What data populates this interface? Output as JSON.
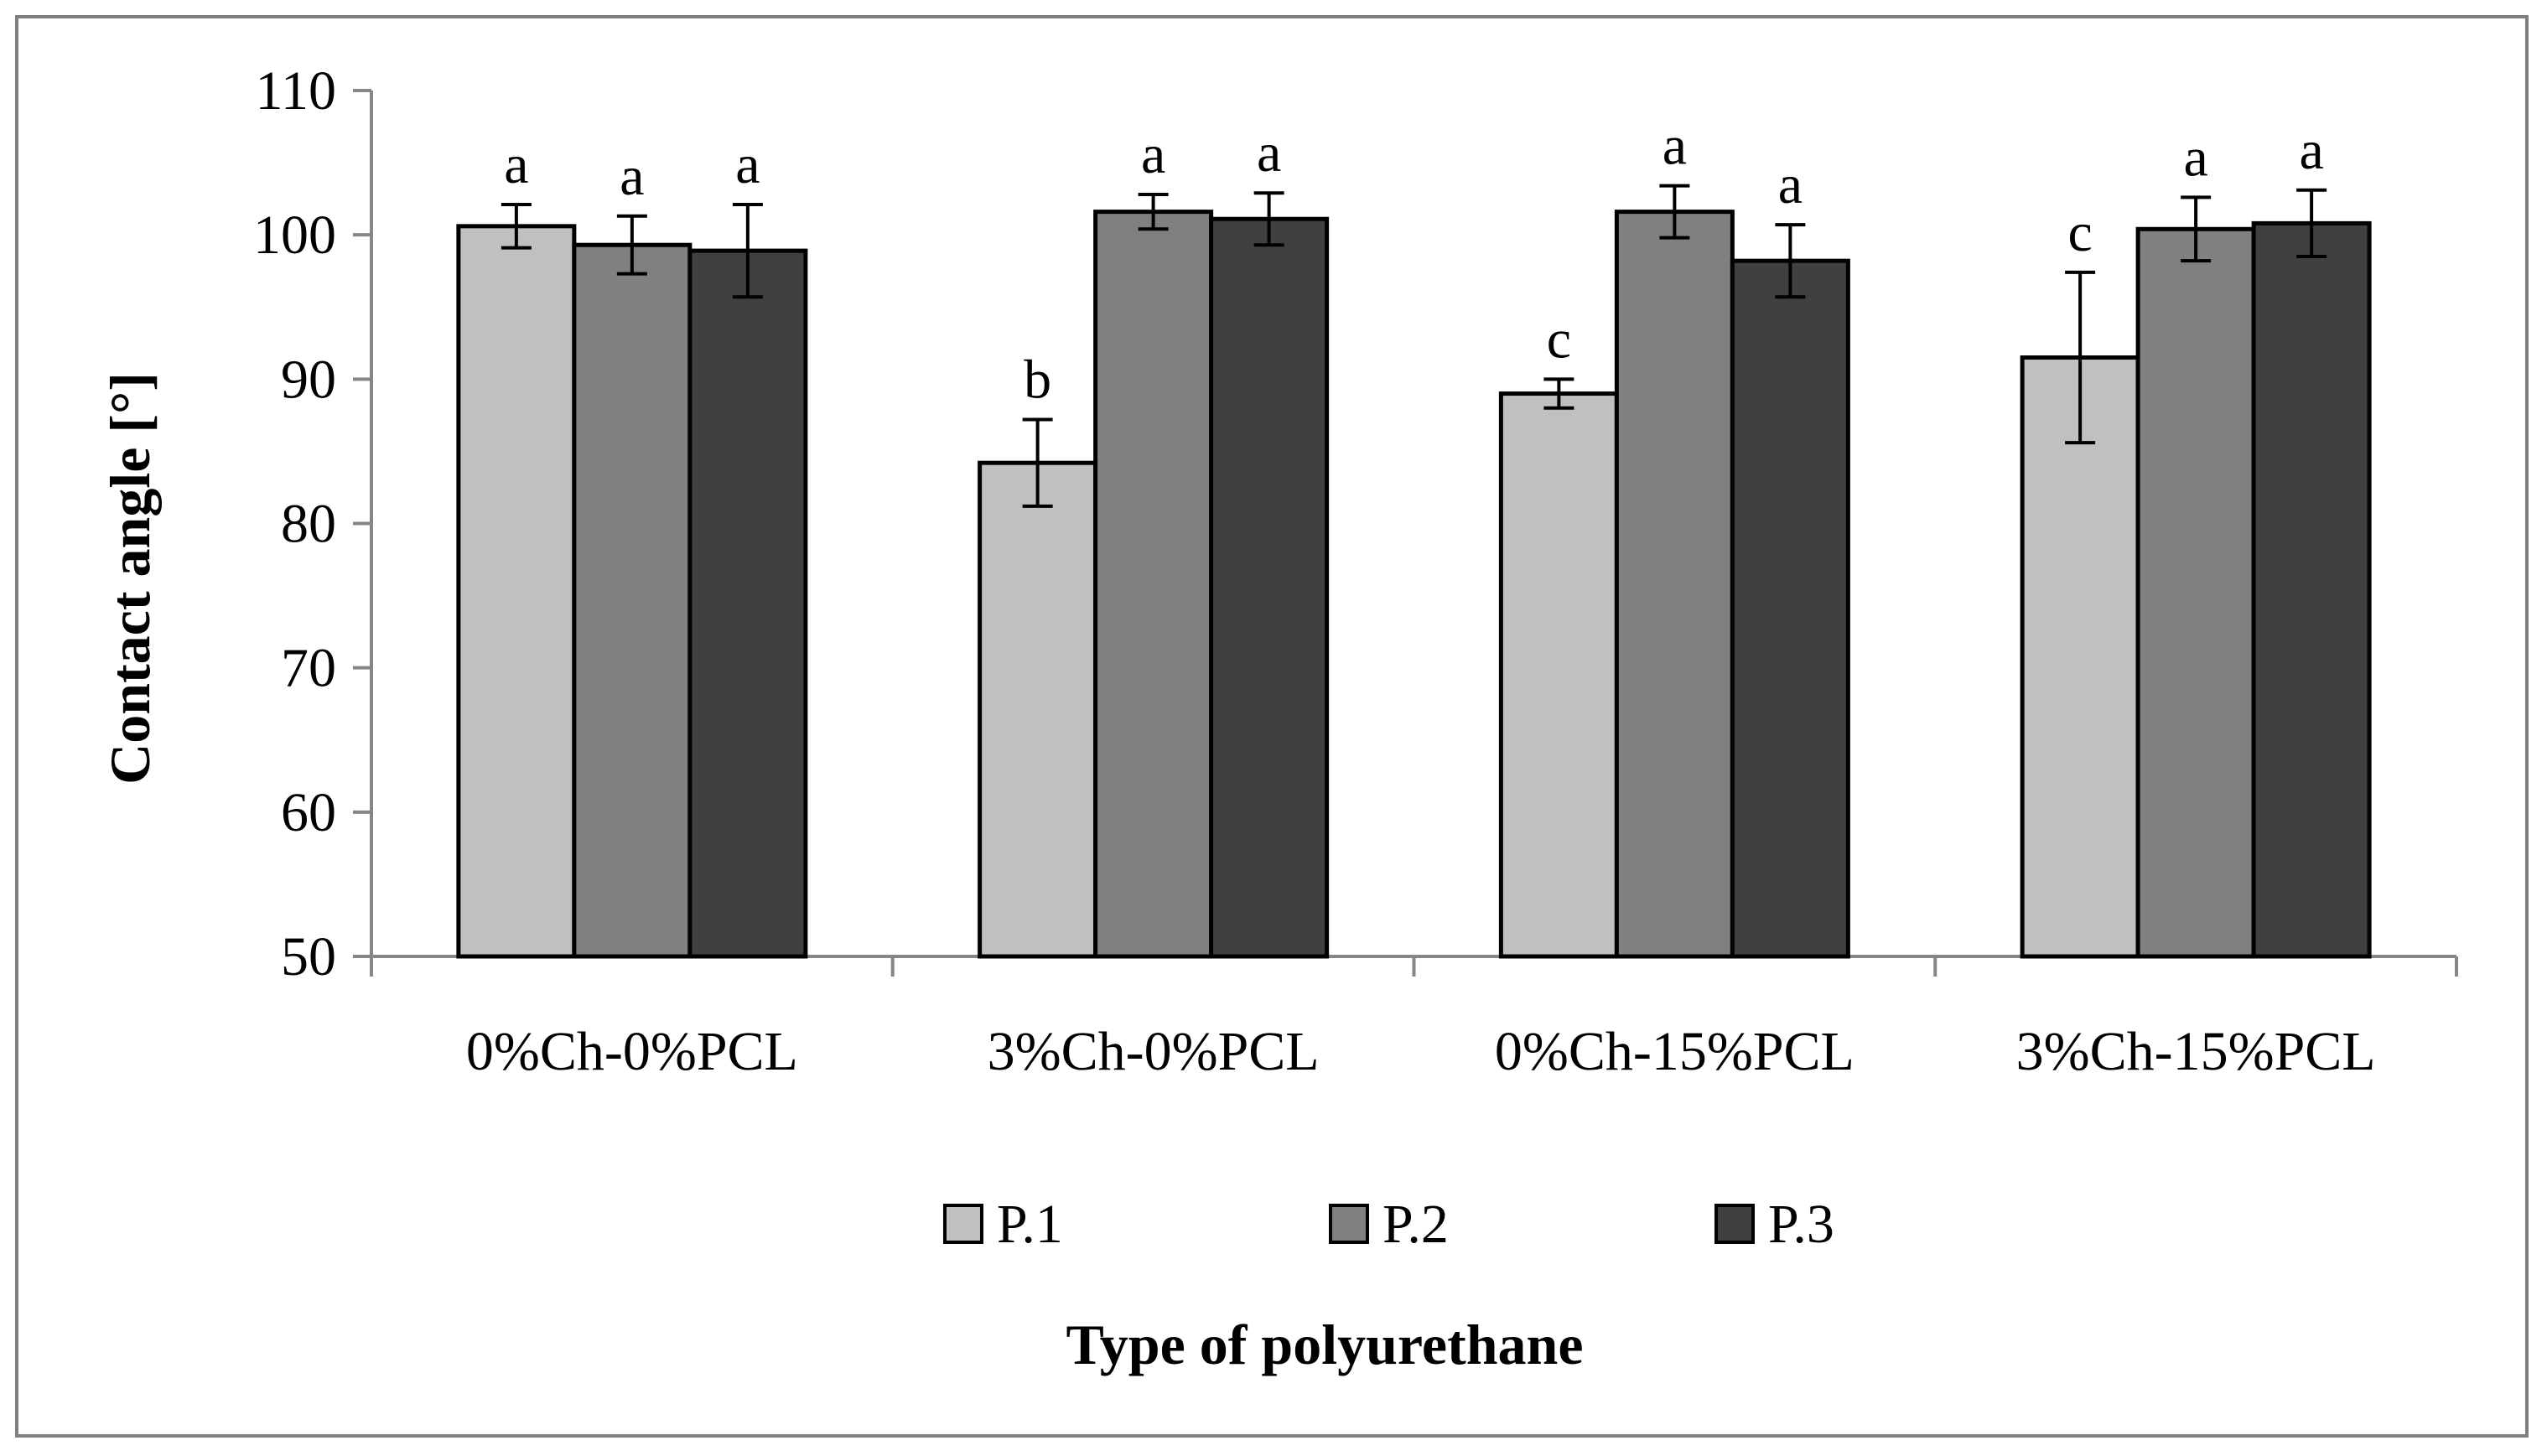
{
  "chart_data": {
    "type": "bar",
    "title": "",
    "xlabel": "Type of polyurethane",
    "ylabel": "Contact angle [°]",
    "ylim": [
      50,
      110
    ],
    "yticks": [
      50,
      60,
      70,
      80,
      90,
      100,
      110
    ],
    "categories": [
      "0%Ch-0%PCL",
      "3%Ch-0%PCL",
      "0%Ch-15%PCL",
      "3%Ch-15%PCL"
    ],
    "series": [
      {
        "name": "P.1",
        "color": "#c0c0c0",
        "values": [
          100.6,
          84.2,
          89.0,
          91.5
        ],
        "errors": [
          1.5,
          3.0,
          1.0,
          5.9
        ],
        "labels": [
          "a",
          "b",
          "c",
          "c"
        ]
      },
      {
        "name": "P.2",
        "color": "#808080",
        "values": [
          99.3,
          101.6,
          101.6,
          100.4
        ],
        "errors": [
          2.0,
          1.2,
          1.8,
          2.2
        ],
        "labels": [
          "a",
          "a",
          "a",
          "a"
        ]
      },
      {
        "name": "P.3",
        "color": "#404040",
        "values": [
          98.9,
          101.1,
          98.2,
          100.8
        ],
        "errors": [
          3.2,
          1.8,
          2.5,
          2.3
        ],
        "labels": [
          "a",
          "a",
          "a",
          "a"
        ]
      }
    ],
    "legend": "bottom",
    "grid": false
  }
}
